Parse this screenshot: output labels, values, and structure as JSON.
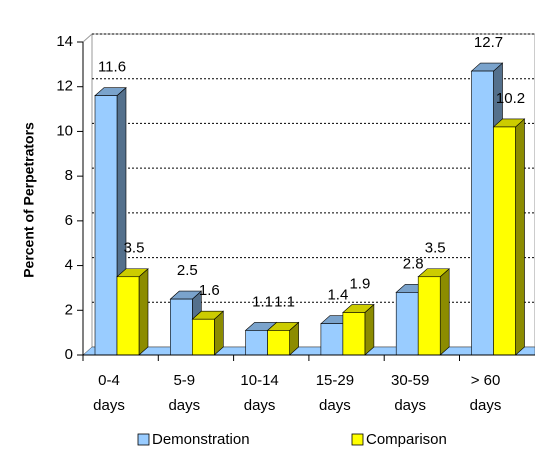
{
  "chart_data": {
    "type": "bar3d",
    "y_label": "Percent of Perpetrators",
    "categories": [
      "0-4 days",
      "5-9 days",
      "10-14 days",
      "15-29 days",
      "30-59 days",
      "> 60 days"
    ],
    "series": [
      {
        "name": "Demonstration",
        "color": "#99ccff",
        "values": [
          11.6,
          2.5,
          1.1,
          1.4,
          2.8,
          12.7
        ]
      },
      {
        "name": "Comparison",
        "color": "#ffff00",
        "values": [
          3.5,
          1.6,
          1.1,
          1.9,
          3.5,
          10.2
        ]
      }
    ],
    "ylim": [
      0,
      14
    ],
    "yticks": [
      0,
      2,
      4,
      6,
      8,
      10,
      12,
      14
    ],
    "grid": true,
    "legend": "bottom"
  }
}
